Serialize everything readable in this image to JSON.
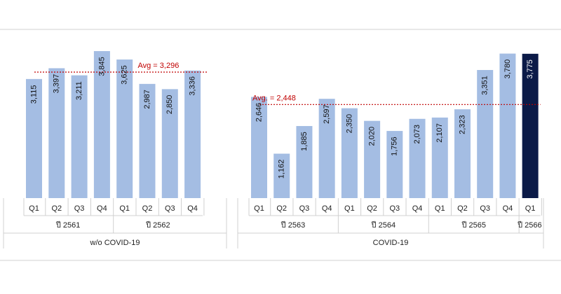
{
  "chart_data": [
    {
      "type": "bar",
      "group_label": "w/o COVID-19",
      "categories": [
        "Q1",
        "Q2",
        "Q3",
        "Q4",
        "Q1",
        "Q2",
        "Q3",
        "Q4"
      ],
      "years": [
        {
          "label": "ปี 2561",
          "span": [
            0,
            3
          ]
        },
        {
          "label": "ปี 2562",
          "span": [
            4,
            7
          ]
        }
      ],
      "values": [
        3115,
        3397,
        3211,
        3845,
        3625,
        2987,
        2850,
        3336
      ],
      "value_labels": [
        "3,115",
        "3,397",
        "3,211",
        "3,845",
        "3,625",
        "2,987",
        "2,850",
        "3,336"
      ],
      "average": {
        "value": 3296,
        "label": "Avg = 3,296"
      },
      "ylim": [
        0,
        3950
      ],
      "colors": {
        "bar": "#a4bde3",
        "avg_line": "#c00000",
        "avg_label": "#c00000"
      }
    },
    {
      "type": "bar",
      "group_label": "COVID-19",
      "categories": [
        "Q1",
        "Q2",
        "Q3",
        "Q4",
        "Q1",
        "Q2",
        "Q3",
        "Q4",
        "Q1",
        "Q2",
        "Q3",
        "Q4",
        "Q1"
      ],
      "years": [
        {
          "label": "ปี 2563",
          "span": [
            0,
            3
          ]
        },
        {
          "label": "ปี 2564",
          "span": [
            4,
            7
          ]
        },
        {
          "label": "ปี 2565",
          "span": [
            8,
            11
          ]
        },
        {
          "label": "ปี 2566",
          "span": [
            12,
            12
          ]
        }
      ],
      "values": [
        2646,
        1162,
        1885,
        2597,
        2350,
        2020,
        1756,
        2073,
        2107,
        2323,
        3351,
        3780,
        3775
      ],
      "value_labels": [
        "2,646",
        "1,162",
        "1,885",
        "2,597",
        "2,350",
        "2,020",
        "1,756",
        "2,073",
        "2,107",
        "2,323",
        "3,351",
        "3,780",
        "3,775"
      ],
      "highlight_index": 12,
      "average": {
        "value": 2448,
        "label": "Avg. = 2,448"
      },
      "ylim": [
        0,
        3950
      ],
      "colors": {
        "bar": "#a4bde3",
        "highlight_bar": "#0b1a47",
        "avg_line": "#c00000",
        "avg_label": "#c00000"
      }
    }
  ]
}
